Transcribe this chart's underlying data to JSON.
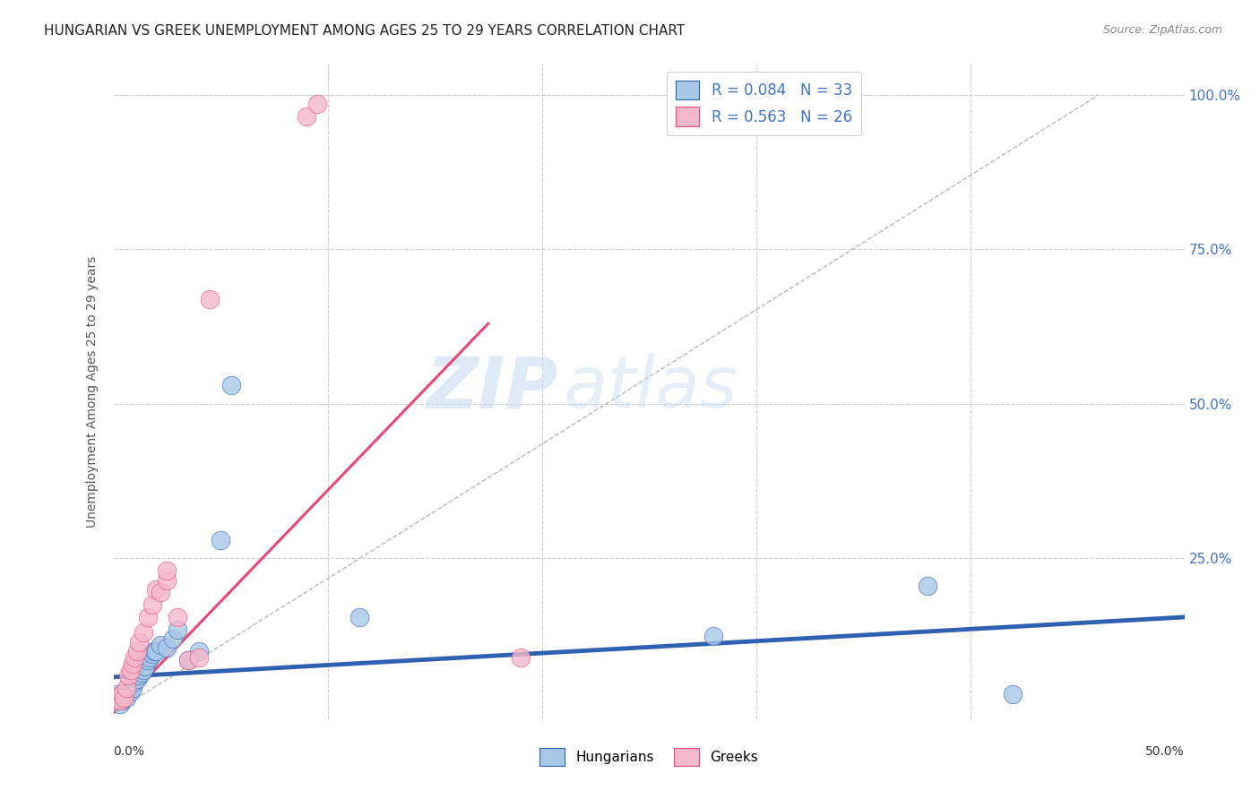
{
  "title": "HUNGARIAN VS GREEK UNEMPLOYMENT AMONG AGES 25 TO 29 YEARS CORRELATION CHART",
  "source": "Source: ZipAtlas.com",
  "ylabel": "Unemployment Among Ages 25 to 29 years",
  "xlim": [
    0.0,
    0.5
  ],
  "ylim": [
    -0.01,
    1.05
  ],
  "watermark_zip": "ZIP",
  "watermark_atlas": "atlas",
  "legend_hungarian_R": "R = 0.084",
  "legend_hungarian_N": "N = 33",
  "legend_greek_R": "R = 0.563",
  "legend_greek_N": "N = 26",
  "hungarian_scatter_color": "#a8c8e8",
  "greek_scatter_color": "#f4b8cc",
  "hungarian_line_color": "#3060b0",
  "greek_line_color": "#e84878",
  "background_color": "#ffffff",
  "grid_color": "#cccccc",
  "hungarian_x": [
    0.001,
    0.002,
    0.003,
    0.003,
    0.004,
    0.005,
    0.006,
    0.007,
    0.008,
    0.009,
    0.01,
    0.011,
    0.012,
    0.013,
    0.014,
    0.015,
    0.016,
    0.017,
    0.018,
    0.019,
    0.02,
    0.022,
    0.025,
    0.028,
    0.03,
    0.035,
    0.04,
    0.05,
    0.055,
    0.115,
    0.28,
    0.38,
    0.42
  ],
  "hungarian_y": [
    0.02,
    0.03,
    0.015,
    0.025,
    0.02,
    0.03,
    0.025,
    0.04,
    0.035,
    0.04,
    0.05,
    0.055,
    0.06,
    0.065,
    0.07,
    0.075,
    0.085,
    0.09,
    0.095,
    0.1,
    0.1,
    0.11,
    0.105,
    0.12,
    0.135,
    0.085,
    0.1,
    0.28,
    0.53,
    0.155,
    0.125,
    0.205,
    0.03
  ],
  "greek_x": [
    0.001,
    0.002,
    0.003,
    0.004,
    0.005,
    0.006,
    0.007,
    0.008,
    0.009,
    0.01,
    0.011,
    0.012,
    0.014,
    0.016,
    0.018,
    0.02,
    0.022,
    0.025,
    0.025,
    0.03,
    0.035,
    0.04,
    0.045,
    0.09,
    0.095,
    0.19
  ],
  "greek_y": [
    0.02,
    0.025,
    0.02,
    0.03,
    0.025,
    0.04,
    0.06,
    0.07,
    0.08,
    0.09,
    0.1,
    0.115,
    0.13,
    0.155,
    0.175,
    0.2,
    0.195,
    0.215,
    0.23,
    0.155,
    0.085,
    0.09,
    0.67,
    0.965,
    0.985,
    0.09
  ],
  "hungarian_trend_x": [
    0.0,
    0.5
  ],
  "hungarian_trend_y": [
    0.058,
    0.155
  ],
  "greek_trend_x": [
    0.0,
    0.175
  ],
  "greek_trend_y": [
    0.0,
    0.63
  ],
  "dashed_line_x": [
    0.0,
    0.46
  ],
  "dashed_line_y": [
    0.0,
    1.0
  ]
}
